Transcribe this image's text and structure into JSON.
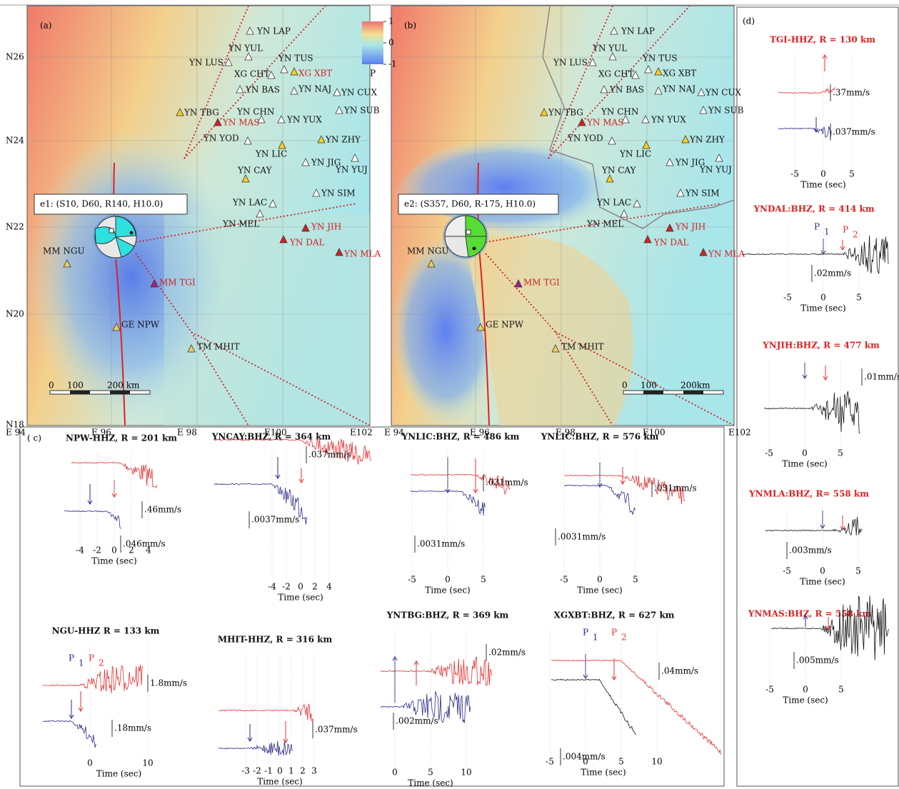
{
  "stations": [
    "YN LAP",
    "YN YUL",
    "YN LUS",
    "YN TUS",
    "XG XBT",
    "XG CHT",
    "YN BAS",
    "YN NAJ",
    "YN CUX",
    "YN SUB",
    "YN TBG",
    "YN CHN",
    "YN MAS",
    "YN YUX",
    "YN YOD",
    "YN ZHY",
    "YN LIC",
    "YN JIG",
    "YN YUJ",
    "YN CAY",
    "YN SIM",
    "YN LAC",
    "YN MEL",
    "YN JIH",
    "YN DAL",
    "YN MLA",
    "MM NGU",
    "MM TGI",
    "GE NPW",
    "TM MHIT"
  ],
  "latitudes": [
    "N26",
    "N24",
    "N22",
    "N20",
    "N18"
  ],
  "longitudes": [
    "E 94",
    "E 96",
    "E 98",
    "E100",
    "E102"
  ],
  "map_a": {
    "label": "(a)",
    "mechanism": "e1: (S10, D60, R140, H10.0)",
    "colorbar": {
      "title": "P",
      "ticks": [
        1,
        0,
        -1
      ]
    },
    "scale": [
      "0",
      "100",
      "200 km"
    ]
  },
  "map_b": {
    "label": "(b)",
    "mechanism": "e2: (S357, D60, R-175, H10.0)",
    "scale": [
      "0",
      "100",
      "200km"
    ]
  },
  "panel_c": {
    "label": "( c)",
    "traces": [
      {
        "title": "NPW-HHZ, R = 201 km",
        "xticks": [
          -4,
          -2,
          0,
          2,
          4
        ],
        "xlabel": "Time (sec)",
        "scales": [
          ".46mm/s",
          ".046mm/s"
        ]
      },
      {
        "title": "YNCAY:BHZ, R = 364 km",
        "xticks": [
          -4,
          -2,
          0,
          2,
          4
        ],
        "xlabel": "Time (sec)",
        "scales": [
          ".037mm/s",
          ".0037mm/s"
        ]
      },
      {
        "title": "YNLIC:BHZ, R = 486 km",
        "xticks": [
          -5,
          0,
          5
        ],
        "xlabel": "Time (sec)",
        "scales": [
          ".031mm/s",
          ".0031mm/s"
        ]
      },
      {
        "title": "YNLIC:BHZ, R = 576 km",
        "xticks": [
          -5,
          0,
          5
        ],
        "xlabel": "Time (sec)",
        "scales": [
          ".031mm/s",
          ".0031mm/s"
        ]
      },
      {
        "title": "NGU-HHZ R = 133 km",
        "xticks": [
          0,
          10
        ],
        "xlabel": "Time (sec)",
        "scales": [
          "1.8mm/s",
          ".18mm/s"
        ],
        "picks": [
          {
            "p": "P",
            "sub": "1"
          },
          {
            "p": "P",
            "sub": "2"
          }
        ]
      },
      {
        "title": "MHIT-HHZ, R = 316 km",
        "xticks": [
          -3,
          -2,
          -1,
          0,
          1,
          2,
          3
        ],
        "xlabel": "Time (sec)",
        "scales": [
          ".037mm/s"
        ]
      },
      {
        "title": "YNTBG:BHZ, R = 369 km",
        "xticks": [
          0,
          5,
          10
        ],
        "xlabel": "Time (sec)",
        "scales": [
          ".02mm/s",
          ".002mm/s"
        ]
      },
      {
        "title": "XGXBT:BHZ, R = 627 km",
        "xticks": [
          -5,
          0,
          5,
          10
        ],
        "xlabel": "Time (sec)",
        "scales": [
          ".04mm/s",
          ".004mm/s"
        ],
        "picks": [
          {
            "p": "P",
            "sub": "1"
          },
          {
            "p": "P",
            "sub": "2"
          }
        ]
      }
    ]
  },
  "panel_d": {
    "label": "(d)",
    "traces": [
      {
        "title": "TGI-HHZ, R = 130 km",
        "xticks": [
          -5,
          0,
          5
        ],
        "xlabel": "Time (sec)",
        "scales": [
          ".37mm/s",
          ".037mm/s"
        ]
      },
      {
        "title": "YNDAL:BHZ, R = 414 km",
        "xticks": [
          -5,
          0,
          5
        ],
        "xlabel": "Time (sec)",
        "scales": [
          ".02mm/s"
        ],
        "picks": [
          {
            "p": "P",
            "sub": "1"
          },
          {
            "p": "P",
            "sub": "2"
          }
        ]
      },
      {
        "title": "YNJIH:BHZ, R = 477 km",
        "xticks": [
          -5,
          0,
          5
        ],
        "xlabel": "Time (sec)",
        "scales": [
          ".01mm/s"
        ]
      },
      {
        "title": "YNMLA:BHZ, R= 558 km",
        "xticks": [
          -5,
          0,
          5
        ],
        "xlabel": "Time (sec)",
        "scales": [
          ".003mm/s"
        ]
      },
      {
        "title": "YNMAS:BHZ, R = 558 km",
        "xticks": [
          -5,
          0,
          5
        ],
        "xlabel": "Time (sec)",
        "scales": [
          ".005mm/s"
        ]
      }
    ]
  }
}
